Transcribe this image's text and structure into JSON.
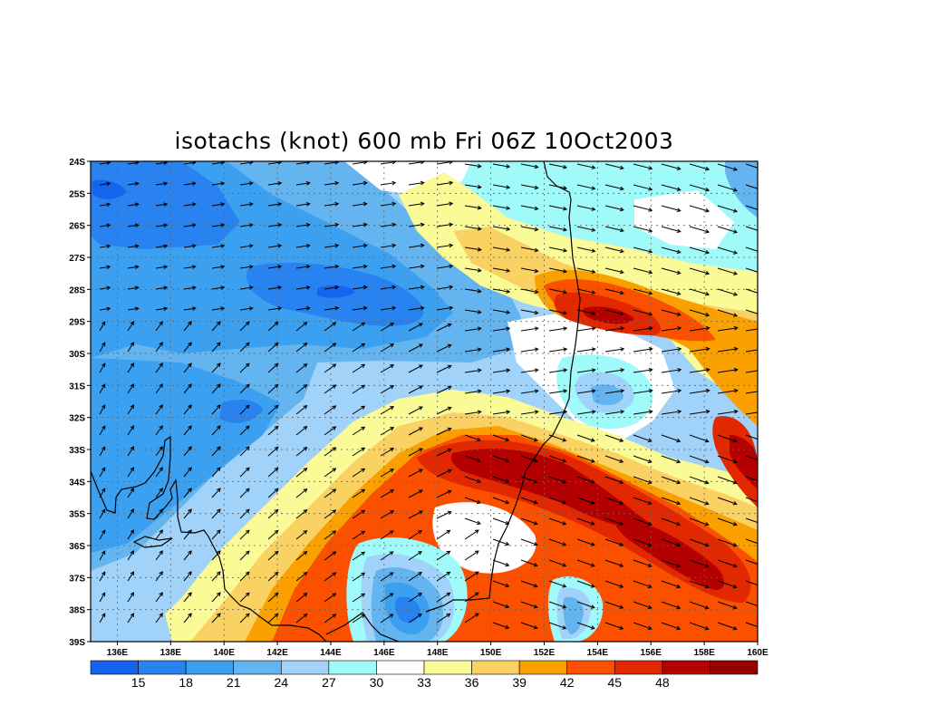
{
  "title": "isotachs (knot) 600 mb Fri 06Z 10Oct2003",
  "map": {
    "lat_labels": [
      "24S",
      "25S",
      "26S",
      "27S",
      "28S",
      "29S",
      "30S",
      "31S",
      "32S",
      "33S",
      "34S",
      "35S",
      "36S",
      "37S",
      "38S",
      "39S"
    ],
    "lon_labels": [
      "136E",
      "138E",
      "140E",
      "142E",
      "144E",
      "146E",
      "148E",
      "150E",
      "152E",
      "154E",
      "156E",
      "158E",
      "160E"
    ],
    "extent": {
      "lon_min": 135,
      "lon_max": 160,
      "lat_top": -24,
      "lat_bottom": -39
    }
  },
  "colorbar": {
    "labels": [
      "15",
      "18",
      "21",
      "24",
      "27",
      "30",
      "33",
      "36",
      "39",
      "42",
      "45",
      "48"
    ],
    "colors": [
      "#1464f0",
      "#2882f0",
      "#3ca0f0",
      "#64b4f0",
      "#a0d2fa",
      "#a0fafa",
      "#ffffff",
      "#fafa96",
      "#fad264",
      "#faa000",
      "#fa5000",
      "#e12800",
      "#b40000",
      "#960000"
    ]
  },
  "colors": {
    "c12": "#1464f0",
    "c15": "#2882f0",
    "c18": "#3ca0f0",
    "c21": "#64b4f0",
    "c24": "#a0d2fa",
    "c27": "#a0fafa",
    "c30": "#ffffff",
    "c33": "#fafa96",
    "c36": "#fad264",
    "c39": "#faa000",
    "c42": "#fa5000",
    "c45": "#e12800",
    "c48": "#b40000"
  }
}
